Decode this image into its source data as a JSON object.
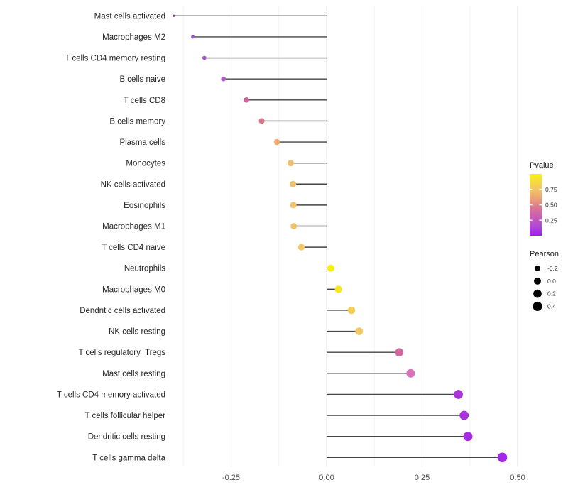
{
  "chart_data": {
    "type": "scatter",
    "variant": "lollipop",
    "title": "",
    "xlabel": "",
    "ylabel": "",
    "xlim": [
      -0.443,
      0.503
    ],
    "x_axis": {
      "major_ticks": [
        -0.25,
        0.0,
        0.25,
        0.5
      ],
      "major_labels": [
        "-0.25",
        "0.00",
        "0.25",
        "0.50"
      ],
      "minor_ticks": [
        -0.375,
        -0.125,
        0.125,
        0.375
      ]
    },
    "grid": {
      "vertical": true,
      "horizontal": false,
      "major_color": "#e7e7e7",
      "minor_color": "#f3f3f3"
    },
    "stem_color": "#454545",
    "legend_position": "right",
    "points": [
      {
        "label": "Mast cells activated",
        "pearson": -0.4,
        "pvalue": 0.05,
        "color": "#8633AE"
      },
      {
        "label": "Macrophages M2",
        "pearson": -0.35,
        "pvalue": 0.13,
        "color": "#A44BD3"
      },
      {
        "label": "T cells CD4 memory resting",
        "pearson": -0.32,
        "pvalue": 0.14,
        "color": "#A94ED1"
      },
      {
        "label": "B cells naive",
        "pearson": -0.27,
        "pvalue": 0.18,
        "color": "#B55AC8"
      },
      {
        "label": "T cells CD8",
        "pearson": -0.21,
        "pvalue": 0.35,
        "color": "#D2609F"
      },
      {
        "label": "B cells memory",
        "pearson": -0.17,
        "pvalue": 0.43,
        "color": "#DB7489"
      },
      {
        "label": "Plasma cells",
        "pearson": -0.13,
        "pvalue": 0.6,
        "color": "#EFAB6E"
      },
      {
        "label": "Monocytes",
        "pearson": -0.094,
        "pvalue": 0.65,
        "color": "#EFC06E"
      },
      {
        "label": "NK cells activated",
        "pearson": -0.088,
        "pvalue": 0.65,
        "color": "#F0C16C"
      },
      {
        "label": "Eosinophils",
        "pearson": -0.087,
        "pvalue": 0.66,
        "color": "#F0C26B"
      },
      {
        "label": "Macrophages M1",
        "pearson": -0.086,
        "pvalue": 0.66,
        "color": "#F0C36A"
      },
      {
        "label": "T cells CD4 naive",
        "pearson": -0.066,
        "pvalue": 0.7,
        "color": "#F1C966"
      },
      {
        "label": "Neutrophils",
        "pearson": 0.011,
        "pvalue": 0.97,
        "color": "#F6EF11"
      },
      {
        "label": "Macrophages M0",
        "pearson": 0.031,
        "pvalue": 0.93,
        "color": "#F6E71B"
      },
      {
        "label": "Dendritic cells activated",
        "pearson": 0.065,
        "pvalue": 0.8,
        "color": "#F2CE5C"
      },
      {
        "label": "NK cells resting",
        "pearson": 0.085,
        "pvalue": 0.73,
        "color": "#F0C865"
      },
      {
        "label": "T cells regulatory  Tregs",
        "pearson": 0.19,
        "pvalue": 0.36,
        "color": "#D2679E"
      },
      {
        "label": "Mast cells resting",
        "pearson": 0.22,
        "pvalue": 0.32,
        "color": "#D870BA"
      },
      {
        "label": "T cells CD4 memory activated",
        "pearson": 0.345,
        "pvalue": 0.11,
        "color": "#AC34DA"
      },
      {
        "label": "T cells follicular helper",
        "pearson": 0.36,
        "pvalue": 0.09,
        "color": "#A92FDF"
      },
      {
        "label": "Dendritic cells resting",
        "pearson": 0.37,
        "pvalue": 0.08,
        "color": "#A62BE3"
      },
      {
        "label": "T cells gamma delta",
        "pearson": 0.46,
        "pvalue": 0.03,
        "color": "#A328EC"
      }
    ],
    "legends": {
      "pvalue": {
        "title": "Pvalue",
        "tick_labels": [
          "0.75",
          "0.50",
          "0.25"
        ],
        "tick_values": [
          0.75,
          0.5,
          0.25
        ],
        "range": [
          0,
          1
        ],
        "gradient_stops": [
          {
            "at": 0.0,
            "color": "#A21BF0"
          },
          {
            "at": 0.15,
            "color": "#AE4AD6"
          },
          {
            "at": 0.3,
            "color": "#C75CB6"
          },
          {
            "at": 0.45,
            "color": "#DB7494"
          },
          {
            "at": 0.6,
            "color": "#EBA275"
          },
          {
            "at": 0.75,
            "color": "#F1C666"
          },
          {
            "at": 0.88,
            "color": "#F5DC3D"
          },
          {
            "at": 1.0,
            "color": "#F8F216"
          }
        ]
      },
      "pearson": {
        "title": "Pearson",
        "items": [
          {
            "label": "-0.2",
            "value": -0.2
          },
          {
            "label": "0.0",
            "value": 0.0
          },
          {
            "label": "0.2",
            "value": 0.2
          },
          {
            "label": "0.4",
            "value": 0.4
          }
        ],
        "dot_color": "#000000"
      }
    }
  }
}
